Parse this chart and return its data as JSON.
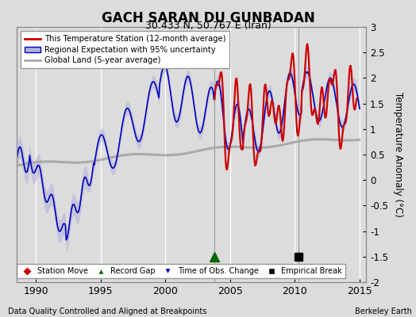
{
  "title": "GACH SARAN DU GUNBADAN",
  "subtitle": "30.433 N, 50.767 E (Iran)",
  "ylabel": "Temperature Anomaly (°C)",
  "xlim": [
    1988.5,
    2015.5
  ],
  "ylim": [
    -2.0,
    3.0
  ],
  "yticks": [
    -2,
    -1.5,
    -1,
    -0.5,
    0,
    0.5,
    1,
    1.5,
    2,
    2.5,
    3
  ],
  "xticks": [
    1990,
    1995,
    2000,
    2005,
    2010,
    2015
  ],
  "bg_color": "#dcdcdc",
  "plot_bg_color": "#dcdcdc",
  "grid_color": "white",
  "red_line_color": "#cc0000",
  "blue_line_color": "#0000bb",
  "blue_fill_color": "#b0b0dd",
  "gray_line_color": "#aaaaaa",
  "vertical_line_color": "#999999",
  "vertical_lines": [
    2003.75,
    2010.25
  ],
  "record_gap_x": 2003.75,
  "record_gap_y": -1.5,
  "empirical_break_x": 2010.25,
  "empirical_break_y": -1.5,
  "footnote_left": "Data Quality Controlled and Aligned at Breakpoints",
  "footnote_right": "Berkeley Earth"
}
